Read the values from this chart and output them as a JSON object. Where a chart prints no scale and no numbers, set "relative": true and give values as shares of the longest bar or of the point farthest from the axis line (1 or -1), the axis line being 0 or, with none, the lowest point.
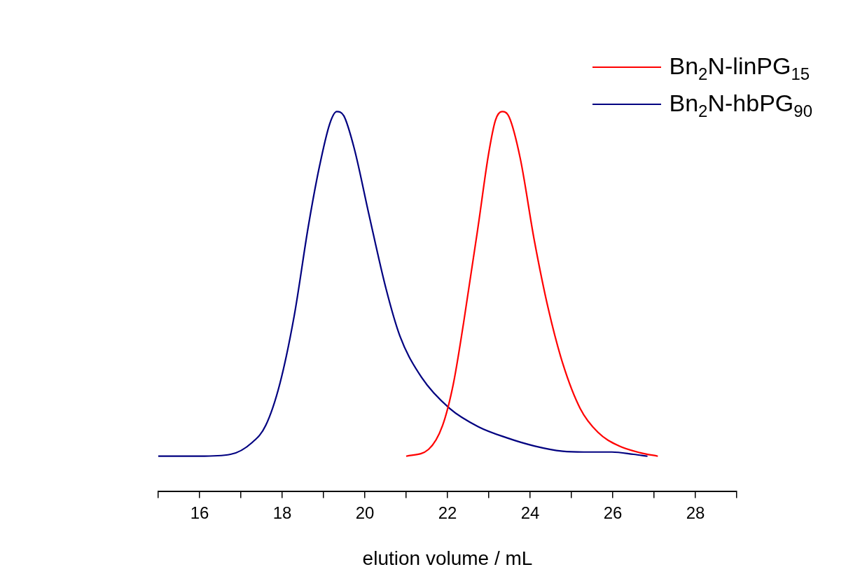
{
  "chart_data": {
    "type": "line",
    "relative": true,
    "xlabel": "elution volume / mL",
    "xlim": [
      15,
      29
    ],
    "xticks": [
      {
        "value": 15,
        "label": null
      },
      16,
      {
        "value": 17,
        "label": null
      },
      18,
      {
        "value": 19,
        "label": null
      },
      20,
      {
        "value": 21,
        "label": null
      },
      22,
      {
        "value": 23,
        "label": null
      },
      24,
      {
        "value": 25,
        "label": null
      },
      26,
      {
        "value": 27,
        "label": null
      },
      28,
      {
        "value": 29,
        "label": null
      }
    ],
    "legend": "top right",
    "grid": false,
    "marker": "none",
    "line_style": "solid",
    "series": [
      {
        "name": "Bn$_{2}$N-linPG$_{15}$",
        "color": "#ff0000",
        "x": [
          21.0,
          21.54,
          21.88,
          22.14,
          22.39,
          22.74,
          22.99,
          23.16,
          23.32,
          23.49,
          23.76,
          24.1,
          24.44,
          24.79,
          25.21,
          25.64,
          26.15,
          26.67,
          27.09
        ],
        "values": [
          0.092,
          0.11,
          0.173,
          0.282,
          0.444,
          0.697,
          0.886,
          0.977,
          1,
          0.986,
          0.877,
          0.661,
          0.48,
          0.336,
          0.218,
          0.155,
          0.119,
          0.101,
          0.092
        ]
      },
      {
        "name": "Bn$_{2}$N-hbPG$_{90}$",
        "color": "#000080",
        "x": [
          15.0,
          16.0,
          16.75,
          17.27,
          17.6,
          17.94,
          18.29,
          18.63,
          18.89,
          19.15,
          19.32,
          19.49,
          19.74,
          20.09,
          20.51,
          20.85,
          21.37,
          22.05,
          22.74,
          23.42,
          24.1,
          24.79,
          25.3,
          25.98,
          26.5,
          26.84
        ],
        "values": [
          0.092,
          0.092,
          0.097,
          0.128,
          0.173,
          0.282,
          0.462,
          0.697,
          0.85,
          0.968,
          1,
          0.989,
          0.904,
          0.733,
          0.534,
          0.408,
          0.3,
          0.218,
          0.17,
          0.141,
          0.119,
          0.105,
          0.103,
          0.103,
          0.097,
          0.092
        ]
      }
    ]
  }
}
